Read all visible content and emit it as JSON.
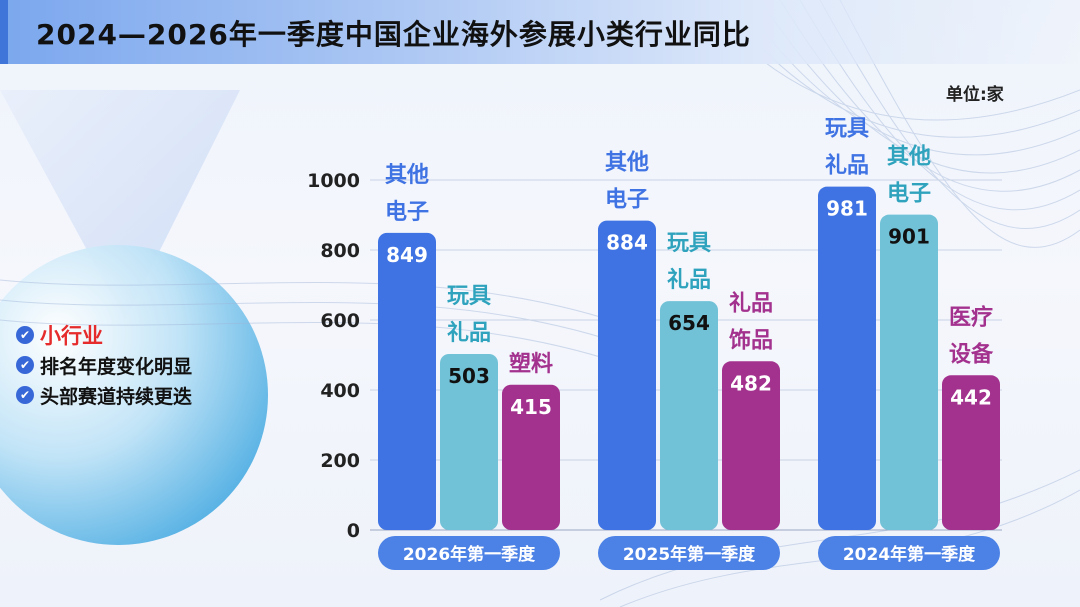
{
  "title": "2024—2026年一季度中国企业海外参展小类行业同比",
  "unit_label": "单位:家",
  "notes": [
    {
      "text": "小行业",
      "highlight": true,
      "icon": "check-circle-icon"
    },
    {
      "text": "排名年度变化明显",
      "highlight": false,
      "icon": "check-circle-icon"
    },
    {
      "text": "头部赛道持续更迭",
      "highlight": false,
      "icon": "check-circle-icon"
    }
  ],
  "colors": {
    "title_bar": "#7ba7ee",
    "bar_blue": "#3f73e3",
    "bar_cyan": "#72c2d7",
    "bar_purple": "#a3318e",
    "label_blue": "#3f73e3",
    "label_cyan": "#2fa3bd",
    "label_purple": "#a3318e",
    "pill": "#4c82e6",
    "highlight_red": "#e52b2b"
  },
  "chart_data": {
    "type": "bar",
    "yticks": [
      0,
      200,
      400,
      600,
      800,
      1000
    ],
    "ylim": [
      0,
      1000
    ],
    "groups": [
      {
        "category": "2026年第一季度",
        "bars": [
          {
            "name": "其他电子",
            "value": 849,
            "color": "blue"
          },
          {
            "name": "玩具礼品",
            "value": 503,
            "color": "cyan"
          },
          {
            "name": "塑料",
            "value": 415,
            "color": "purple"
          }
        ]
      },
      {
        "category": "2025年第一季度",
        "bars": [
          {
            "name": "其他电子",
            "value": 884,
            "color": "blue"
          },
          {
            "name": "玩具礼品",
            "value": 654,
            "color": "cyan"
          },
          {
            "name": "礼品饰品",
            "value": 482,
            "color": "purple"
          }
        ]
      },
      {
        "category": "2024年第一季度",
        "bars": [
          {
            "name": "玩具礼品",
            "value": 981,
            "color": "blue"
          },
          {
            "name": "其他电子",
            "value": 901,
            "color": "cyan"
          },
          {
            "name": "医疗设备",
            "value": 442,
            "color": "purple"
          }
        ]
      }
    ]
  }
}
